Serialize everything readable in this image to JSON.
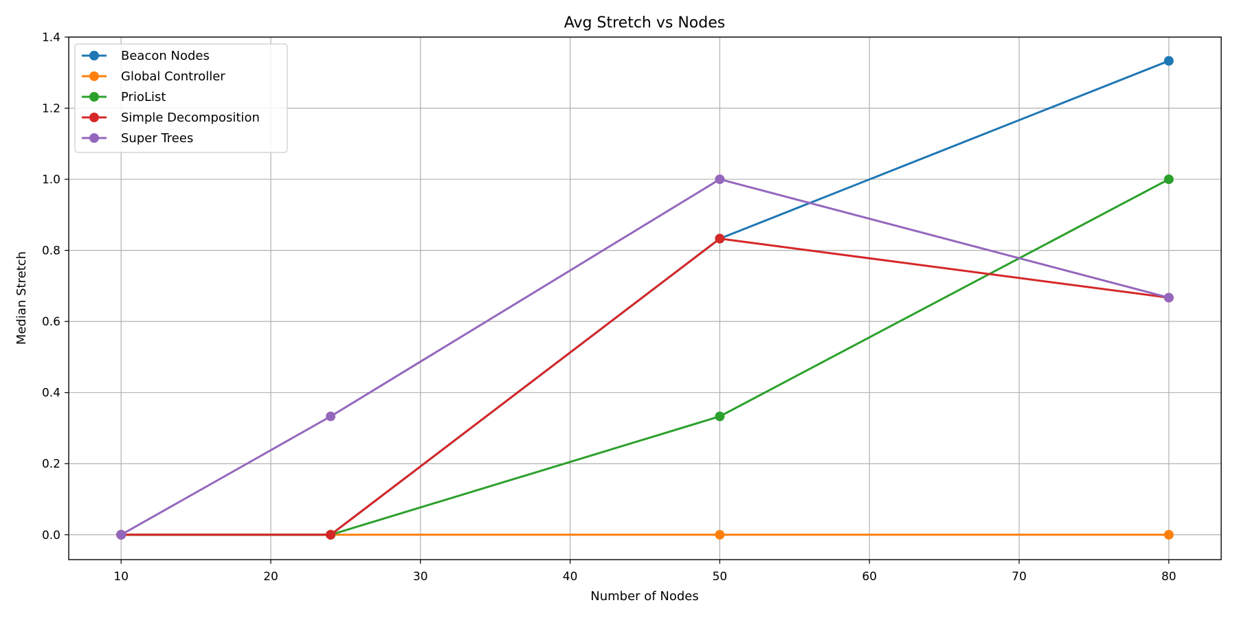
{
  "chart_data": {
    "type": "line",
    "title": "Avg Stretch vs Nodes",
    "xlabel": "Number of Nodes",
    "ylabel": "Median Stretch",
    "x": [
      10,
      24,
      50,
      80
    ],
    "xlim": [
      6.5,
      83.5
    ],
    "ylim": [
      -0.07,
      1.4
    ],
    "xticks": [
      10,
      20,
      30,
      40,
      50,
      60,
      70,
      80
    ],
    "yticks": [
      0.0,
      0.2,
      0.4,
      0.6,
      0.8,
      1.0,
      1.2,
      1.4
    ],
    "grid": true,
    "legend_position": "top-left",
    "series": [
      {
        "name": "Beacon Nodes",
        "color": "#1f77b4",
        "values": [
          0,
          0,
          0.833,
          1.333
        ]
      },
      {
        "name": "Global Controller",
        "color": "#ff7f0e",
        "values": [
          0,
          0,
          0,
          0
        ]
      },
      {
        "name": "PrioList",
        "color": "#2ca02c",
        "values": [
          0,
          0,
          0.333,
          1.0
        ]
      },
      {
        "name": "Simple Decomposition",
        "color": "#d62728",
        "values": [
          0,
          0,
          0.833,
          0.667
        ]
      },
      {
        "name": "Super Trees",
        "color": "#9467bd",
        "values": [
          0,
          0.333,
          1.0,
          0.667
        ]
      }
    ]
  }
}
